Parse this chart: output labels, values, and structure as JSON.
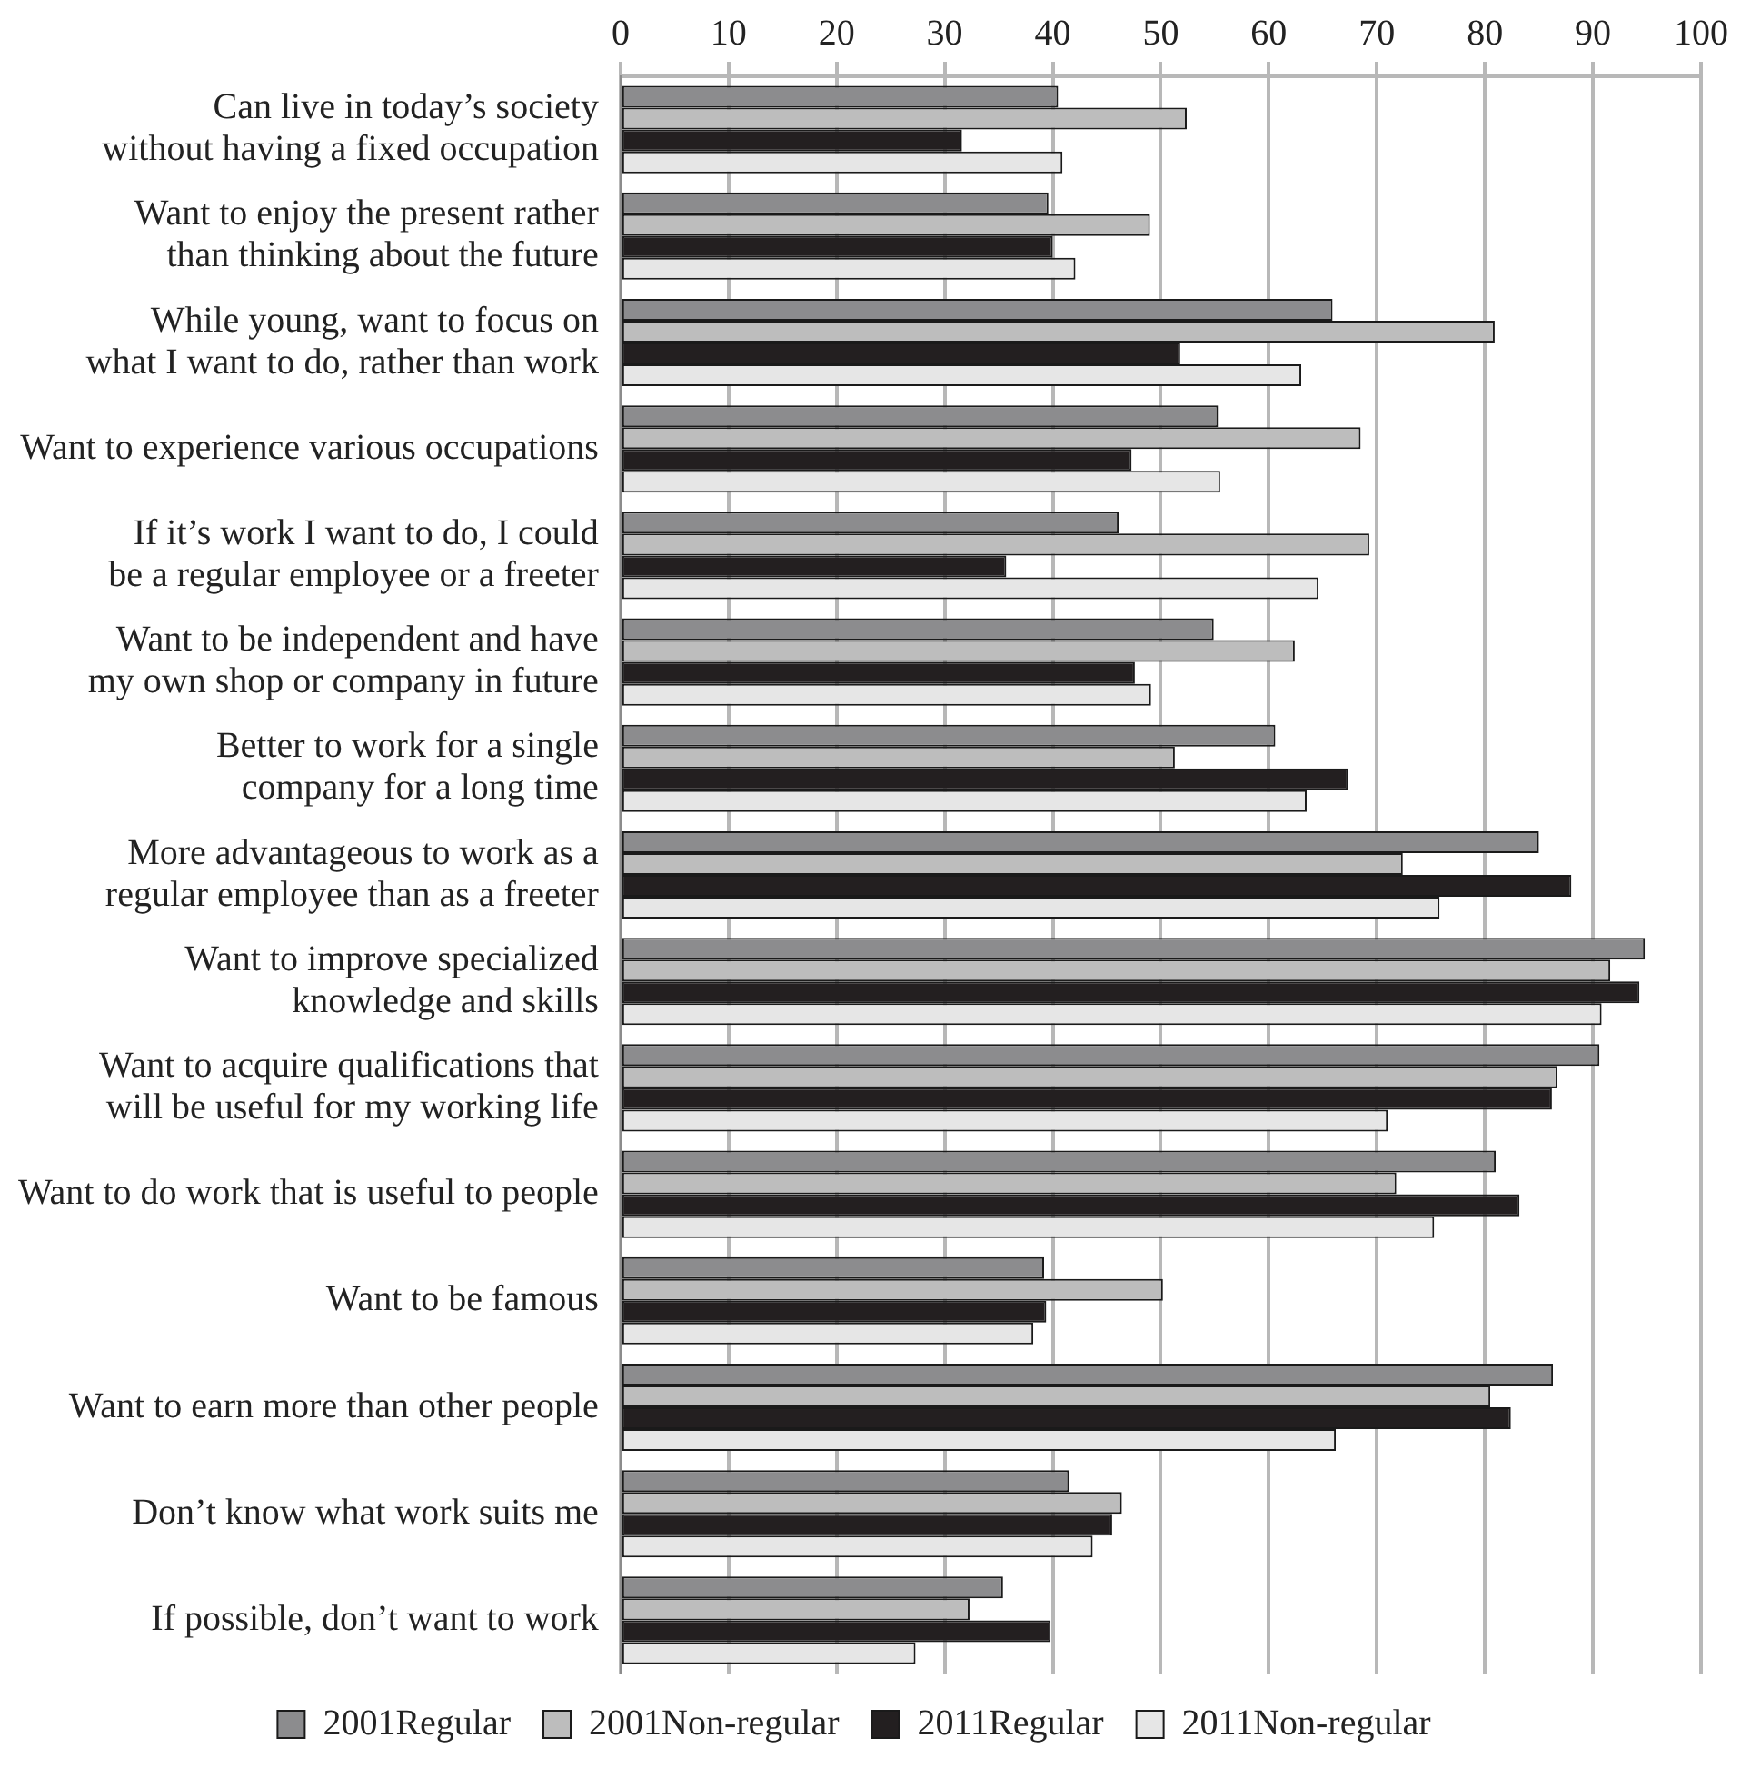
{
  "chart_data": {
    "type": "bar",
    "orientation": "horizontal",
    "categories": [
      "Can live in today’s society without having a fixed occupation",
      "Want to enjoy the present rather than thinking about the future",
      "While young, want to focus on what I want to do, rather than work",
      "Want to experience various occupations",
      "If it’s work I want to do, I could be a regular employee or a freeter",
      "Want to be independent and have my own shop or company in future",
      "Better to work for a single company for a long time",
      "More advantageous to work as a regular employee than as a freeter",
      "Want to improve specialized knowledge and skills",
      "Want to acquire qualifications that will be useful for my working life",
      "Want to do work that is useful to people",
      "Want to be famous",
      "Want to earn more than other people",
      "Don’t know what work suits me",
      "If possible, don’t want to work"
    ],
    "series": [
      {
        "name": "2001Regular",
        "color": "#8c8c8e",
        "values": [
          40.5,
          39.6,
          65.9,
          55.3,
          46.1,
          54.9,
          60.6,
          85.0,
          94.8,
          90.6,
          81.0,
          39.2,
          86.3,
          41.5,
          35.4
        ]
      },
      {
        "name": "2001Non-regular",
        "color": "#bdbdbd",
        "values": [
          52.4,
          49.0,
          80.9,
          68.5,
          69.3,
          62.4,
          51.3,
          72.4,
          91.6,
          86.7,
          71.8,
          50.2,
          80.5,
          46.4,
          32.3
        ]
      },
      {
        "name": "2011Regular",
        "color": "#231f20",
        "values": [
          31.6,
          40.0,
          51.8,
          47.3,
          35.7,
          47.6,
          67.3,
          88.0,
          94.3,
          86.2,
          83.2,
          39.4,
          82.4,
          45.5,
          39.8
        ]
      },
      {
        "name": "2011Non-regular",
        "color": "#e6e6e6",
        "values": [
          40.9,
          42.1,
          63.0,
          55.5,
          64.6,
          49.1,
          63.5,
          75.8,
          90.8,
          71.0,
          75.3,
          38.2,
          66.2,
          43.7,
          27.3
        ]
      }
    ],
    "xlim": [
      0,
      100
    ],
    "xticks": [
      0,
      10,
      20,
      30,
      40,
      50,
      60,
      70,
      80,
      90,
      100
    ],
    "grid": "x",
    "legend": "bottom"
  }
}
